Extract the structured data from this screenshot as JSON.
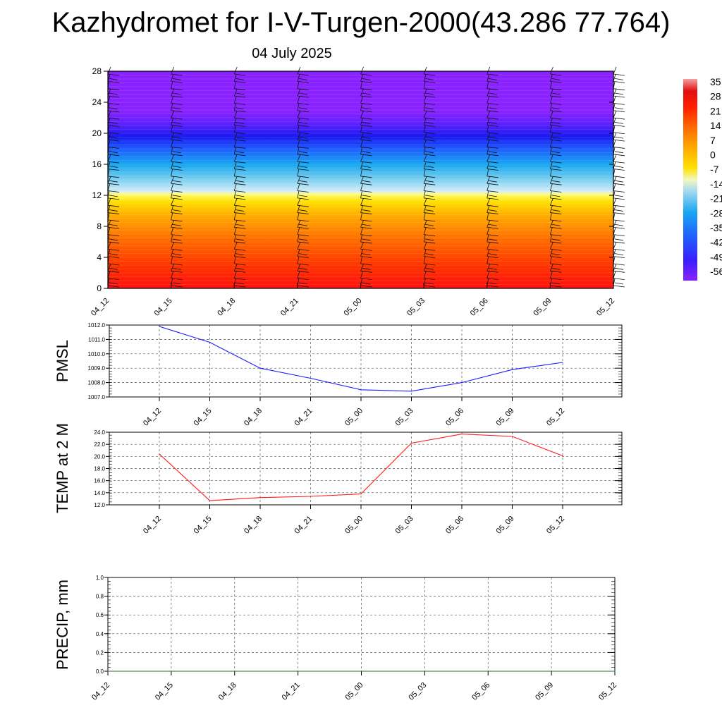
{
  "title": "Kazhydromet for I-V-Turgen-2000(43.286 77.764)",
  "subtitle": "04 July 2025",
  "colors": {
    "pmsl_line": "#1a1aff",
    "temp_line": "#ff1a1a",
    "precip_line": "#2a6a2a"
  },
  "chart_data": [
    {
      "type": "heatmap",
      "description_label": "",
      "x": [
        "04_12",
        "04_15",
        "04_18",
        "04_21",
        "05_00",
        "05_03",
        "05_06",
        "05_09",
        "05_12"
      ],
      "y_ticks": [
        "0",
        "4",
        "8",
        "12",
        "16",
        "20",
        "24",
        "28"
      ],
      "ylim": [
        0,
        28
      ],
      "levels": [
        0,
        28
      ],
      "colorbar_labels": [
        "35",
        "28",
        "21",
        "14",
        "7",
        "0",
        "-7",
        "-14",
        "-21",
        "-28",
        "-35",
        "-42",
        "-49",
        "-56"
      ],
      "colorbar_range": [
        -56,
        35
      ],
      "wind_barbs": true,
      "grid": false
    },
    {
      "type": "line",
      "ylabel": "PMSL",
      "x": [
        "04_12",
        "04_15",
        "04_18",
        "04_21",
        "05_00",
        "05_03",
        "05_06",
        "05_09",
        "05_12"
      ],
      "series": [
        {
          "values": [
            1011.9,
            1010.8,
            1009.0,
            1008.3,
            1007.5,
            1007.4,
            1008.0,
            1008.9,
            1009.4
          ]
        }
      ],
      "y_ticks": [
        "1007.0",
        "1008.0",
        "1009.0",
        "1010.0",
        "1011.0",
        "1012.0"
      ],
      "ylim": [
        1007.0,
        1012.0
      ],
      "grid": true
    },
    {
      "type": "line",
      "ylabel": "TEMP at 2 M",
      "x": [
        "04_12",
        "04_15",
        "04_18",
        "04_21",
        "05_00",
        "05_03",
        "05_06",
        "05_09",
        "05_12"
      ],
      "series": [
        {
          "values": [
            20.4,
            12.7,
            13.2,
            13.4,
            13.8,
            22.2,
            23.7,
            23.3,
            20.1
          ]
        }
      ],
      "y_ticks": [
        "12.0",
        "14.0",
        "16.0",
        "18.0",
        "20.0",
        "22.0",
        "24.0"
      ],
      "ylim": [
        12.0,
        24.0
      ],
      "grid": true
    },
    {
      "type": "line",
      "ylabel": "PRECIP, mm",
      "x": [
        "04_12",
        "04_15",
        "04_18",
        "04_21",
        "05_00",
        "05_03",
        "05_06",
        "05_09",
        "05_12"
      ],
      "series": [
        {
          "values": [
            0,
            0,
            0,
            0,
            0,
            0,
            0,
            0,
            0
          ]
        }
      ],
      "y_ticks": [
        "0.0",
        "0.2",
        "0.4",
        "0.6",
        "0.8",
        "1.0"
      ],
      "ylim": [
        0.0,
        1.0
      ],
      "grid": true
    }
  ]
}
